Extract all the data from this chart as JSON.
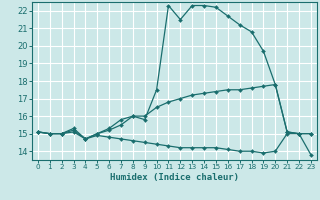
{
  "xlabel": "Humidex (Indice chaleur)",
  "bg_color": "#cce8e8",
  "grid_color": "#ffffff",
  "line_color": "#1a6e6e",
  "xlim": [
    -0.5,
    23.5
  ],
  "ylim": [
    13.5,
    22.5
  ],
  "xticks": [
    0,
    1,
    2,
    3,
    4,
    5,
    6,
    7,
    8,
    9,
    10,
    11,
    12,
    13,
    14,
    15,
    16,
    17,
    18,
    19,
    20,
    21,
    22,
    23
  ],
  "yticks": [
    14,
    15,
    16,
    17,
    18,
    19,
    20,
    21,
    22
  ],
  "line1_x": [
    0,
    1,
    2,
    3,
    4,
    5,
    6,
    7,
    8,
    9,
    10,
    11,
    12,
    13,
    14,
    15,
    16,
    17,
    18,
    19,
    20,
    21,
    22,
    23
  ],
  "line1_y": [
    15.1,
    15.0,
    15.0,
    15.3,
    14.7,
    15.0,
    15.2,
    15.5,
    16.0,
    15.8,
    17.5,
    22.3,
    21.5,
    22.3,
    22.3,
    22.2,
    21.7,
    21.2,
    20.8,
    19.7,
    17.8,
    15.1,
    15.0,
    15.0
  ],
  "line2_x": [
    0,
    1,
    2,
    3,
    4,
    5,
    6,
    7,
    8,
    9,
    10,
    11,
    12,
    13,
    14,
    15,
    16,
    17,
    18,
    19,
    20,
    21,
    22,
    23
  ],
  "line2_y": [
    15.1,
    15.0,
    15.0,
    15.2,
    14.7,
    15.0,
    15.3,
    15.8,
    16.0,
    16.0,
    16.5,
    16.8,
    17.0,
    17.2,
    17.3,
    17.4,
    17.5,
    17.5,
    17.6,
    17.7,
    17.8,
    15.1,
    15.0,
    15.0
  ],
  "line3_x": [
    0,
    1,
    2,
    3,
    4,
    5,
    6,
    7,
    8,
    9,
    10,
    11,
    12,
    13,
    14,
    15,
    16,
    17,
    18,
    19,
    20,
    21,
    22,
    23
  ],
  "line3_y": [
    15.1,
    15.0,
    15.0,
    15.1,
    14.7,
    14.9,
    14.8,
    14.7,
    14.6,
    14.5,
    14.4,
    14.3,
    14.2,
    14.2,
    14.2,
    14.2,
    14.1,
    14.0,
    14.0,
    13.9,
    14.0,
    15.0,
    15.0,
    13.8
  ]
}
